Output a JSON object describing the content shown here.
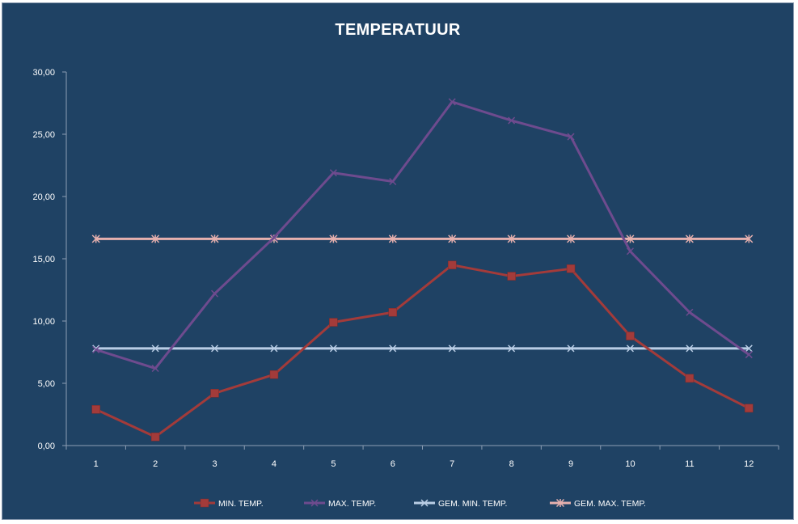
{
  "chart_data": {
    "type": "line",
    "title": "TEMPERATUUR",
    "xlabel": "",
    "ylabel": "",
    "categories": [
      "1",
      "2",
      "3",
      "4",
      "5",
      "6",
      "7",
      "8",
      "9",
      "10",
      "11",
      "12"
    ],
    "ylim": [
      0,
      30
    ],
    "yticks": [
      "0,00",
      "5,00",
      "10,00",
      "15,00",
      "20,00",
      "25,00",
      "30,00"
    ],
    "ytick_values": [
      0,
      5,
      10,
      15,
      20,
      25,
      30
    ],
    "grid": false,
    "legend": "bottom",
    "series": [
      {
        "name": "MIN. TEMP.",
        "color": "#A33B3A",
        "marker": "square",
        "values": [
          2.9,
          0.7,
          4.2,
          5.7,
          9.9,
          10.7,
          14.5,
          13.6,
          14.2,
          8.8,
          5.4,
          3.0
        ]
      },
      {
        "name": "MAX. TEMP.",
        "color": "#6E4B8E",
        "marker": "x",
        "values": [
          7.7,
          6.2,
          12.2,
          16.7,
          21.9,
          21.2,
          27.6,
          26.1,
          24.8,
          15.6,
          10.7,
          7.3
        ]
      },
      {
        "name": "GEM. MIN. TEMP.",
        "color": "#B9CDE5",
        "marker": "x",
        "values": [
          7.8,
          7.8,
          7.8,
          7.8,
          7.8,
          7.8,
          7.8,
          7.8,
          7.8,
          7.8,
          7.8,
          7.8
        ]
      },
      {
        "name": "GEM. MAX. TEMP.",
        "color": "#E6B0AE",
        "marker": "star",
        "values": [
          16.6,
          16.6,
          16.6,
          16.6,
          16.6,
          16.6,
          16.6,
          16.6,
          16.6,
          16.6,
          16.6,
          16.6
        ]
      }
    ]
  }
}
